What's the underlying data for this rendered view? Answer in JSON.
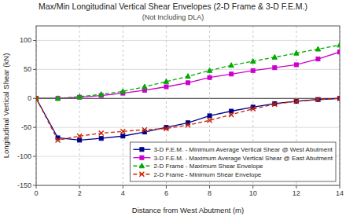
{
  "chart_data": {
    "type": "line",
    "title": "Max/Min Longitudinal Vertical Shear Envelopes (2-D Frame & 3-D F.E.M.)",
    "subtitle": "(Not Including DLA)",
    "xlabel": "Distance from West Abutment (m)",
    "ylabel": "Longitudinal Vertical Shear (kN)",
    "x": [
      0,
      1,
      2,
      3,
      4,
      5,
      6,
      7,
      8,
      9,
      10,
      11,
      12,
      13,
      14
    ],
    "series": [
      {
        "name": "3-D F.E.M. - Minimum Average Vertical Shear @ West Abutment",
        "color": "#00008B",
        "marker": "square",
        "line_style": "solid",
        "values": [
          0,
          -68,
          -72,
          -69,
          -65,
          -58,
          -50,
          -42,
          -30,
          -22,
          -15,
          -9,
          -5,
          -2,
          0
        ]
      },
      {
        "name": "3-D F.E.M. - Maximum Average Vertical Shear @ East Abutment",
        "color": "#CC00CC",
        "marker": "square",
        "line_style": "solid",
        "values": [
          0,
          0,
          2,
          5,
          9,
          14,
          20,
          27,
          36,
          42,
          48,
          53,
          58,
          68,
          80
        ]
      },
      {
        "name": "2-D Frame - Maximum Shear Envelope",
        "color": "#00AA00",
        "marker": "triangle",
        "line_style": "dashed",
        "values": [
          0,
          0,
          3,
          7,
          12,
          20,
          29,
          38,
          48,
          57,
          64,
          71,
          78,
          85,
          92
        ]
      },
      {
        "name": "2-D Frame - Minimum Shear Envelope",
        "color": "#CC2200",
        "marker": "x",
        "line_style": "dashed",
        "values": [
          0,
          -72,
          -65,
          -60,
          -57,
          -54,
          -52,
          -46,
          -38,
          -28,
          -18,
          -10,
          -5,
          -2,
          0
        ]
      }
    ],
    "xlim": [
      0,
      14
    ],
    "ylim": [
      -150,
      125
    ],
    "xticks": [
      0,
      2,
      4,
      6,
      8,
      10,
      12,
      14
    ],
    "yticks": [
      -150,
      -100,
      -50,
      0,
      50,
      100
    ],
    "grid": true,
    "legend": "lower right"
  }
}
